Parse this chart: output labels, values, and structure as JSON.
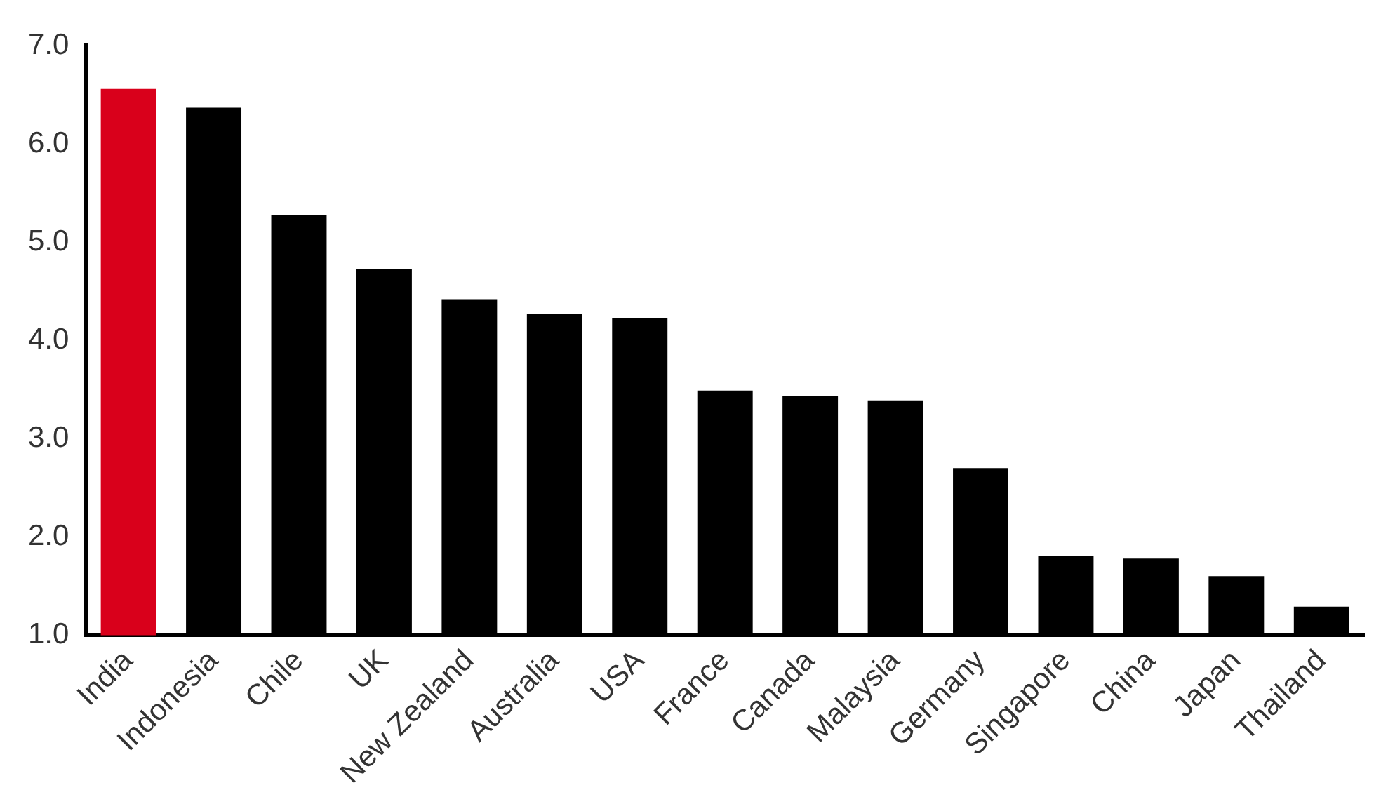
{
  "chart_data": {
    "type": "bar",
    "categories": [
      "India",
      "Indonesia",
      "Chile",
      "UK",
      "New Zealand",
      "Australia",
      "USA",
      "France",
      "Canada",
      "Malaysia",
      "Germany",
      "Singapore",
      "China",
      "Japan",
      "Thailand"
    ],
    "values": [
      6.56,
      6.37,
      5.28,
      4.73,
      4.42,
      4.27,
      4.23,
      3.49,
      3.43,
      3.39,
      2.7,
      1.81,
      1.78,
      1.6,
      1.29
    ],
    "colors": [
      "#d9001b",
      "#000000",
      "#000000",
      "#000000",
      "#000000",
      "#000000",
      "#000000",
      "#000000",
      "#000000",
      "#000000",
      "#000000",
      "#000000",
      "#000000",
      "#000000",
      "#000000"
    ],
    "ylim": [
      1,
      7
    ],
    "yticks": [
      {
        "value": 1,
        "label": "1.0"
      },
      {
        "value": 2,
        "label": "2.0"
      },
      {
        "value": 3,
        "label": "3.0"
      },
      {
        "value": 4,
        "label": "4.0"
      },
      {
        "value": 5,
        "label": "5.0"
      },
      {
        "value": 6,
        "label": "6.0"
      },
      {
        "value": 7,
        "label": "7.0"
      }
    ],
    "grid": false,
    "legend": false
  }
}
